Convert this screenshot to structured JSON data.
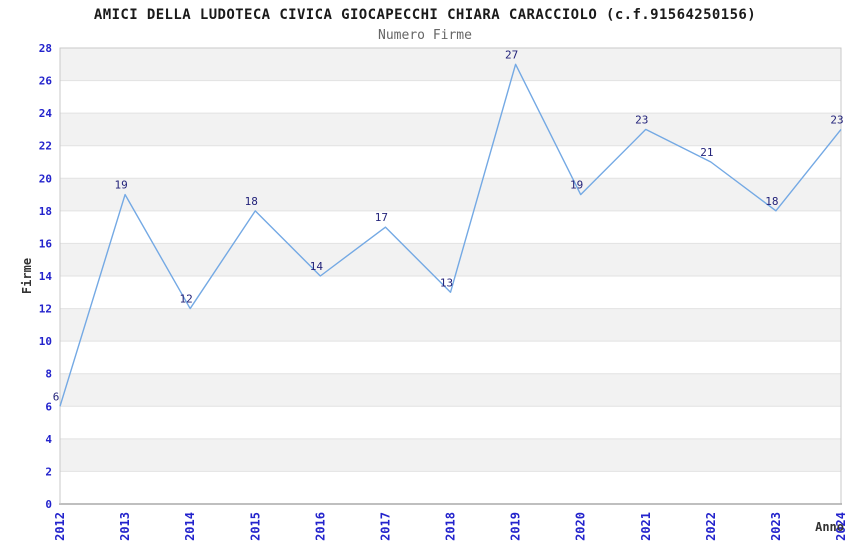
{
  "chart_data": {
    "type": "line",
    "title": "AMICI DELLA LUDOTECA CIVICA GIOCAPECCHI CHIARA CARACCIOLO (c.f.91564250156)",
    "subtitle": "Numero Firme",
    "xlabel": "Anno",
    "ylabel": "Firme",
    "categories": [
      "2012",
      "2013",
      "2014",
      "2015",
      "2016",
      "2017",
      "2018",
      "2019",
      "2020",
      "2021",
      "2022",
      "2023",
      "2024"
    ],
    "series": [
      {
        "name": "Numero Firme",
        "values": [
          6,
          19,
          12,
          18,
          14,
          17,
          13,
          27,
          19,
          23,
          21,
          18,
          23
        ]
      }
    ],
    "ylim": [
      0,
      28
    ],
    "ytick_step": 2,
    "grid": "horizontal-bands-alternating",
    "legend": "none",
    "point_labels_shown": true,
    "colors": {
      "line": "#74a9e4",
      "value_label": "#23237a",
      "tick_label": "#2323cc",
      "band": "#f2f2f2",
      "band_alt": "#ffffff",
      "gridline": "#e2e2e2",
      "frame": "#c9c9c9",
      "axis": "#aaaaaa",
      "title": "#1a1a1a",
      "subtitle": "#666666",
      "axis_title": "#333333",
      "background": "#ffffff"
    }
  }
}
